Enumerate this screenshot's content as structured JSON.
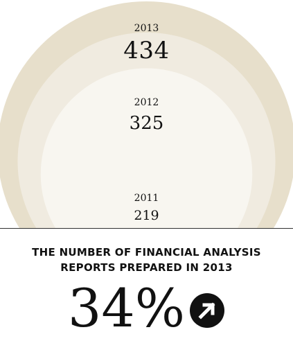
{
  "chart_data": {
    "type": "bubble",
    "categories": [
      "2013",
      "2012",
      "2011"
    ],
    "values": [
      434,
      325,
      219
    ],
    "title": "",
    "xlabel": "",
    "ylabel": ""
  },
  "labels": {
    "y2013": "2013",
    "v2013": "434",
    "y2012": "2012",
    "v2012": "325",
    "y2011": "2011",
    "v2011": "219"
  },
  "caption": {
    "line1": "THE NUMBER OF FINANCIAL ANALYSIS",
    "line2": "REPORTS PREPARED IN 2013"
  },
  "change": {
    "percent": "34%",
    "direction_icon": "arrow-up-right-icon"
  },
  "colors": {
    "circle_2013": "#e7dfcb",
    "circle_2012": "#f0ebe0",
    "circle_2011": "#f8f6f0",
    "baseline": "#2f2f2f",
    "arrow_bg": "#111111",
    "arrow_fg": "#ffffff"
  }
}
